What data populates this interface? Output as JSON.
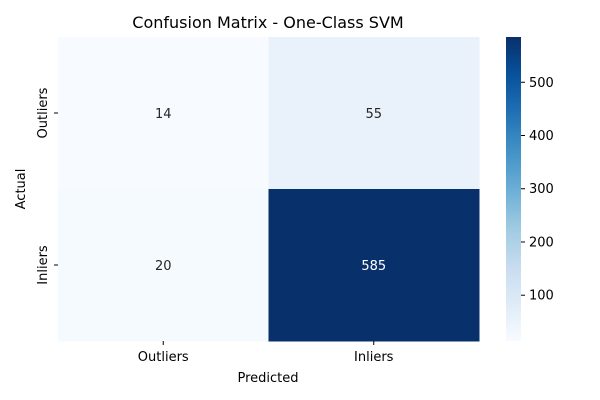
{
  "chart_data": {
    "type": "heatmap",
    "title": "Confusion Matrix - One-Class SVM",
    "xlabel": "Predicted",
    "ylabel": "Actual",
    "x_categories": [
      "Outliers",
      "Inliers"
    ],
    "y_categories": [
      "Outliers",
      "Inliers"
    ],
    "values": [
      [
        14,
        55
      ],
      [
        20,
        585
      ]
    ],
    "colormap": "Blues",
    "color_range": [
      14,
      585
    ],
    "colorbar_ticks": [
      100,
      200,
      300,
      400,
      500
    ],
    "colors": {
      "low": "#f7fbff",
      "high": "#08306b"
    }
  }
}
